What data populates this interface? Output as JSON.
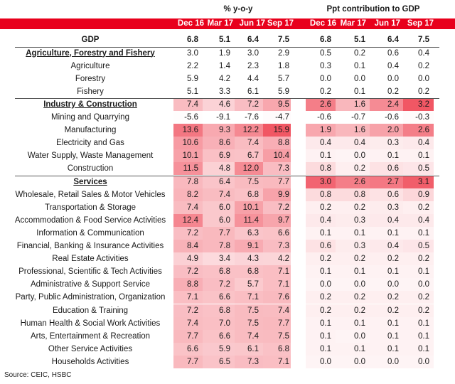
{
  "headers": {
    "group_left": "% y-o-y",
    "group_right": "Ppt contribution to GDP",
    "periods": [
      "Dec 16",
      "Mar 17",
      "Jun 17",
      "Sep 17"
    ]
  },
  "colors": {
    "header_red": "#e8001c",
    "heat_max": "#f04e5c",
    "heat_min": "#ffffff"
  },
  "rows": [
    {
      "label": "GDP",
      "type": "gdp",
      "yoy": [
        "6.8",
        "5.1",
        "6.4",
        "7.5"
      ],
      "ppt": [
        "6.8",
        "5.1",
        "6.4",
        "7.5"
      ],
      "heat": false
    },
    {
      "label": "Agriculture, Forestry and Fishery",
      "type": "sec",
      "yoy": [
        "3.0",
        "1.9",
        "3.0",
        "2.9"
      ],
      "ppt": [
        "0.5",
        "0.2",
        "0.6",
        "0.4"
      ],
      "heat": false
    },
    {
      "label": "Agriculture",
      "type": "sub",
      "yoy": [
        "2.2",
        "1.4",
        "2.3",
        "1.8"
      ],
      "ppt": [
        "0.3",
        "0.1",
        "0.4",
        "0.2"
      ],
      "heat": false
    },
    {
      "label": "Forestry",
      "type": "sub",
      "yoy": [
        "5.9",
        "4.2",
        "4.4",
        "5.7"
      ],
      "ppt": [
        "0.0",
        "0.0",
        "0.0",
        "0.0"
      ],
      "heat": false
    },
    {
      "label": "Fishery",
      "type": "sub",
      "yoy": [
        "5.1",
        "3.3",
        "6.1",
        "5.9"
      ],
      "ppt": [
        "0.2",
        "0.1",
        "0.2",
        "0.2"
      ],
      "heat": false
    },
    {
      "label": "Industry & Construction",
      "type": "sec",
      "yoy": [
        "7.4",
        "4.6",
        "7.2",
        "9.5"
      ],
      "ppt": [
        "2.6",
        "1.6",
        "2.4",
        "3.2"
      ],
      "heat": true
    },
    {
      "label": "Mining and Quarrying",
      "type": "sub",
      "yoy": [
        "-5.6",
        "-9.1",
        "-7.6",
        "-4.7"
      ],
      "ppt": [
        "-0.6",
        "-0.7",
        "-0.6",
        "-0.3"
      ],
      "heat": true
    },
    {
      "label": "Manufacturing",
      "type": "sub",
      "yoy": [
        "13.6",
        "9.3",
        "12.2",
        "15.9"
      ],
      "ppt": [
        "1.9",
        "1.6",
        "2.0",
        "2.6"
      ],
      "heat": true
    },
    {
      "label": "Electricity and Gas",
      "type": "sub",
      "yoy": [
        "10.6",
        "8.6",
        "7.4",
        "8.8"
      ],
      "ppt": [
        "0.4",
        "0.4",
        "0.3",
        "0.4"
      ],
      "heat": true
    },
    {
      "label": "Water Supply, Waste Management",
      "type": "sub",
      "yoy": [
        "10.1",
        "6.9",
        "6.7",
        "10.4"
      ],
      "ppt": [
        "0.1",
        "0.0",
        "0.1",
        "0.1"
      ],
      "heat": true
    },
    {
      "label": "Construction",
      "type": "sub",
      "yoy": [
        "11.5",
        "4.8",
        "12.0",
        "7.3"
      ],
      "ppt": [
        "0.8",
        "0.2",
        "0.6",
        "0.5"
      ],
      "heat": true
    },
    {
      "label": "Services",
      "type": "sec",
      "yoy": [
        "7.8",
        "6.4",
        "7.5",
        "7.7"
      ],
      "ppt": [
        "3.0",
        "2.6",
        "2.7",
        "3.1"
      ],
      "heat": true
    },
    {
      "label": "Wholesale, Retail Sales & Motor Vehicles",
      "type": "sub",
      "yoy": [
        "8.2",
        "7.4",
        "6.8",
        "9.9"
      ],
      "ppt": [
        "0.8",
        "0.8",
        "0.6",
        "0.9"
      ],
      "heat": true
    },
    {
      "label": "Transportation & Storage",
      "type": "sub",
      "yoy": [
        "7.4",
        "6.0",
        "10.1",
        "7.2"
      ],
      "ppt": [
        "0.2",
        "0.2",
        "0.3",
        "0.2"
      ],
      "heat": true
    },
    {
      "label": "Accommodation & Food Service Activities",
      "type": "sub",
      "yoy": [
        "12.4",
        "6.0",
        "11.4",
        "9.7"
      ],
      "ppt": [
        "0.4",
        "0.3",
        "0.4",
        "0.4"
      ],
      "heat": true
    },
    {
      "label": "Information & Communication",
      "type": "sub",
      "yoy": [
        "7.2",
        "7.7",
        "6.3",
        "6.6"
      ],
      "ppt": [
        "0.1",
        "0.1",
        "0.1",
        "0.1"
      ],
      "heat": true
    },
    {
      "label": "Financial, Banking & Insurance Activities",
      "type": "sub",
      "yoy": [
        "8.4",
        "7.8",
        "9.1",
        "7.3"
      ],
      "ppt": [
        "0.6",
        "0.3",
        "0.4",
        "0.5"
      ],
      "heat": true
    },
    {
      "label": "Real Estate Activities",
      "type": "sub",
      "yoy": [
        "4.9",
        "3.4",
        "4.3",
        "4.2"
      ],
      "ppt": [
        "0.2",
        "0.2",
        "0.2",
        "0.2"
      ],
      "heat": true
    },
    {
      "label": "Professional, Scientific & Tech Activities",
      "type": "sub",
      "yoy": [
        "7.2",
        "6.8",
        "6.8",
        "7.1"
      ],
      "ppt": [
        "0.1",
        "0.1",
        "0.1",
        "0.1"
      ],
      "heat": true
    },
    {
      "label": "Administrative & Support Service",
      "type": "sub",
      "yoy": [
        "8.8",
        "7.2",
        "5.7",
        "7.1"
      ],
      "ppt": [
        "0.0",
        "0.0",
        "0.0",
        "0.0"
      ],
      "heat": true
    },
    {
      "label": "Party, Public Administration, Organization",
      "type": "sub",
      "yoy": [
        "7.1",
        "6.6",
        "7.1",
        "7.6"
      ],
      "ppt": [
        "0.2",
        "0.2",
        "0.2",
        "0.2"
      ],
      "heat": true
    },
    {
      "label": "Education & Training",
      "type": "sub",
      "yoy": [
        "7.2",
        "6.8",
        "7.5",
        "7.4"
      ],
      "ppt": [
        "0.2",
        "0.2",
        "0.2",
        "0.2"
      ],
      "heat": true
    },
    {
      "label": "Human Health & Social Work Activities",
      "type": "sub",
      "yoy": [
        "7.4",
        "7.0",
        "7.5",
        "7.7"
      ],
      "ppt": [
        "0.1",
        "0.1",
        "0.1",
        "0.1"
      ],
      "heat": true
    },
    {
      "label": "Arts, Entertainment & Recreation",
      "type": "sub",
      "yoy": [
        "7.7",
        "6.6",
        "7.4",
        "7.5"
      ],
      "ppt": [
        "0.1",
        "0.0",
        "0.1",
        "0.1"
      ],
      "heat": true
    },
    {
      "label": "Other Service Activities",
      "type": "sub",
      "yoy": [
        "6.6",
        "5.9",
        "6.1",
        "6.8"
      ],
      "ppt": [
        "0.1",
        "0.1",
        "0.1",
        "0.1"
      ],
      "heat": true
    },
    {
      "label": "Households Activities",
      "type": "sub",
      "yoy": [
        "7.7",
        "6.5",
        "7.3",
        "7.1"
      ],
      "ppt": [
        "0.0",
        "0.0",
        "0.0",
        "0.0"
      ],
      "heat": true
    }
  ],
  "source": "Source: CEIC, HSBC"
}
